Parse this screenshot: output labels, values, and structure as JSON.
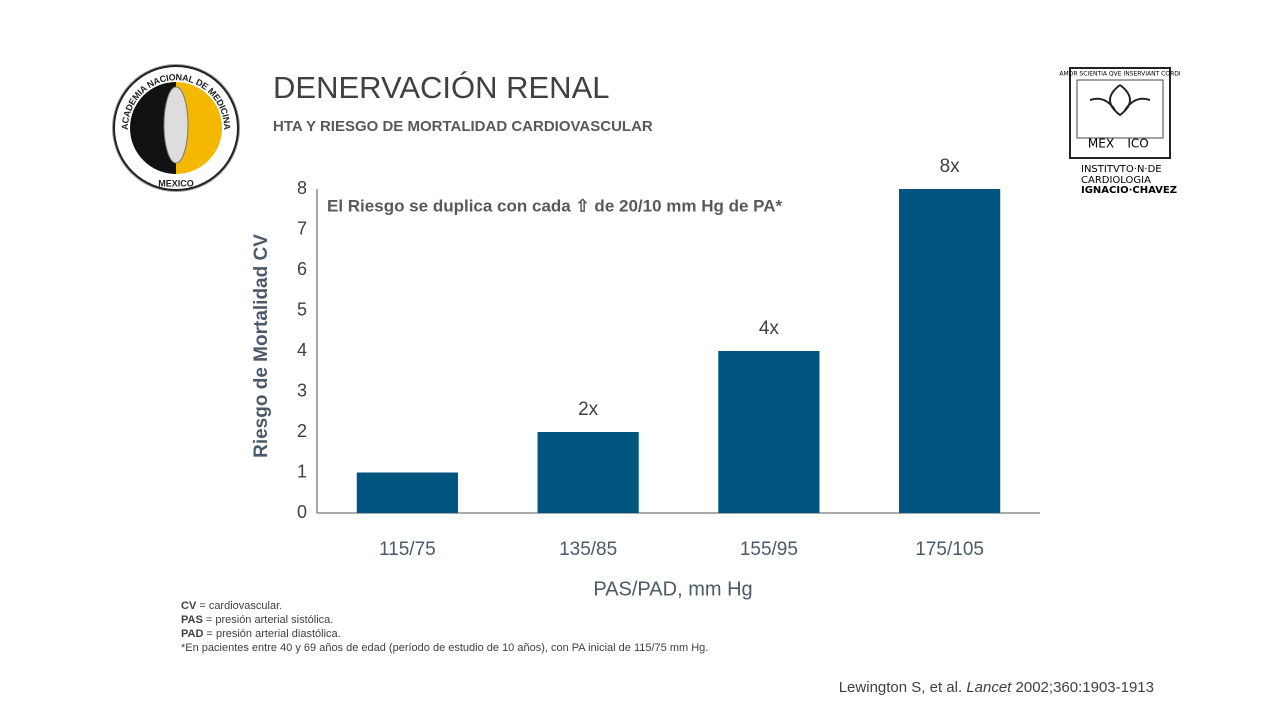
{
  "header": {
    "title": "DENERVACIÓN RENAL",
    "subtitle": "HTA Y RIESGO DE MORTALIDAD CARDIOVASCULAR"
  },
  "logos": {
    "left_ring": "ACADEMIA NACIONAL DE MEDICINA",
    "left_bottom": "MEXICO",
    "right_motto": "AMOR SCIENTIA QVE INSERVIANT CORDI",
    "right_mex": "MEX",
    "right_ico": "ICO",
    "right_lines": [
      "INSTITVTO·N·DE",
      "CARDIOLOGIA",
      "IGNACIO·CHAVEZ"
    ]
  },
  "chart_data": {
    "type": "bar",
    "annotation": "El Riesgo se duplica con cada ⇧ de 20/10 mm Hg de PA*",
    "ylabel": "Riesgo de Mortalidad CV",
    "xlabel": "PAS/PAD, mm Hg",
    "categories": [
      "115/75",
      "135/85",
      "155/95",
      "175/105"
    ],
    "values": [
      1,
      2,
      4,
      8
    ],
    "value_labels": [
      null,
      "2x",
      "4x",
      "8x"
    ],
    "color": "#00557f",
    "ylim": [
      0,
      8
    ],
    "yticks": [
      0,
      1,
      2,
      3,
      4,
      5,
      6,
      7,
      8
    ],
    "grid": false
  },
  "footnotes": [
    {
      "abbr": "CV",
      "text": " = cardiovascular."
    },
    {
      "abbr": "PAS",
      "text": " = presión arterial sistólica."
    },
    {
      "abbr": "PAD",
      "text": " = presión arterial diastólica."
    }
  ],
  "footnote_extra": "*En pacientes entre 40 y 69 años de edad (período de estudio de 10 años), con PA inicial de 115/75 mm Hg.",
  "citation": {
    "authors": "Lewington S, et al. ",
    "journal": "Lancet",
    "rest": " 2002;360:1903-1913"
  }
}
